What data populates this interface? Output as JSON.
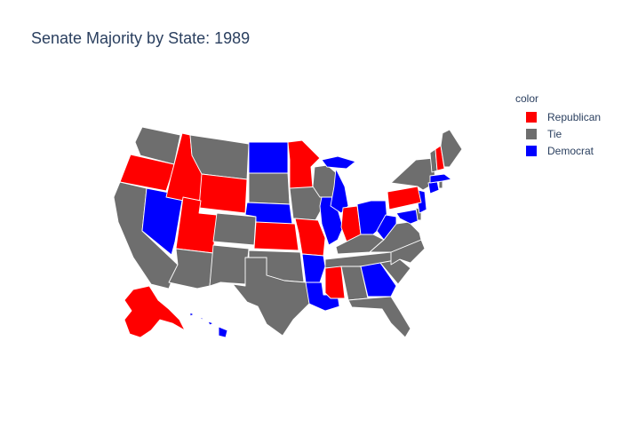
{
  "title": "Senate Majority by State: 1989",
  "colors": {
    "Republican": "#ff0000",
    "Tie": "#6e6e6e",
    "Democrat": "#0000ff",
    "title_text": "#2a3f5f"
  },
  "legend": {
    "title": "color",
    "items": [
      {
        "label": "Republican",
        "color": "#ff0000"
      },
      {
        "label": "Tie",
        "color": "#6e6e6e"
      },
      {
        "label": "Democrat",
        "color": "#0000ff"
      }
    ]
  },
  "states": {
    "WA": "Tie",
    "OR": "Republican",
    "CA": "Tie",
    "NV": "Democrat",
    "ID": "Republican",
    "MT": "Tie",
    "WY": "Republican",
    "UT": "Republican",
    "AZ": "Tie",
    "CO": "Tie",
    "NM": "Tie",
    "ND": "Democrat",
    "SD": "Tie",
    "NE": "Democrat",
    "KS": "Republican",
    "OK": "Tie",
    "TX": "Tie",
    "MN": "Republican",
    "IA": "Tie",
    "MO": "Republican",
    "AR": "Democrat",
    "LA": "Democrat",
    "WI": "Tie",
    "IL": "Democrat",
    "MI": "Democrat",
    "IN": "Republican",
    "OH": "Democrat",
    "KY": "Tie",
    "TN": "Tie",
    "MS": "Republican",
    "AL": "Tie",
    "GA": "Democrat",
    "FL": "Tie",
    "SC": "Tie",
    "NC": "Tie",
    "VA": "Tie",
    "WV": "Democrat",
    "MD": "Democrat",
    "DE": "Tie",
    "NJ": "Democrat",
    "PA": "Republican",
    "NY": "Tie",
    "CT": "Democrat",
    "RI": "Tie",
    "MA": "Democrat",
    "VT": "Tie",
    "NH": "Republican",
    "ME": "Tie",
    "AK": "Republican",
    "HI": "Democrat"
  }
}
